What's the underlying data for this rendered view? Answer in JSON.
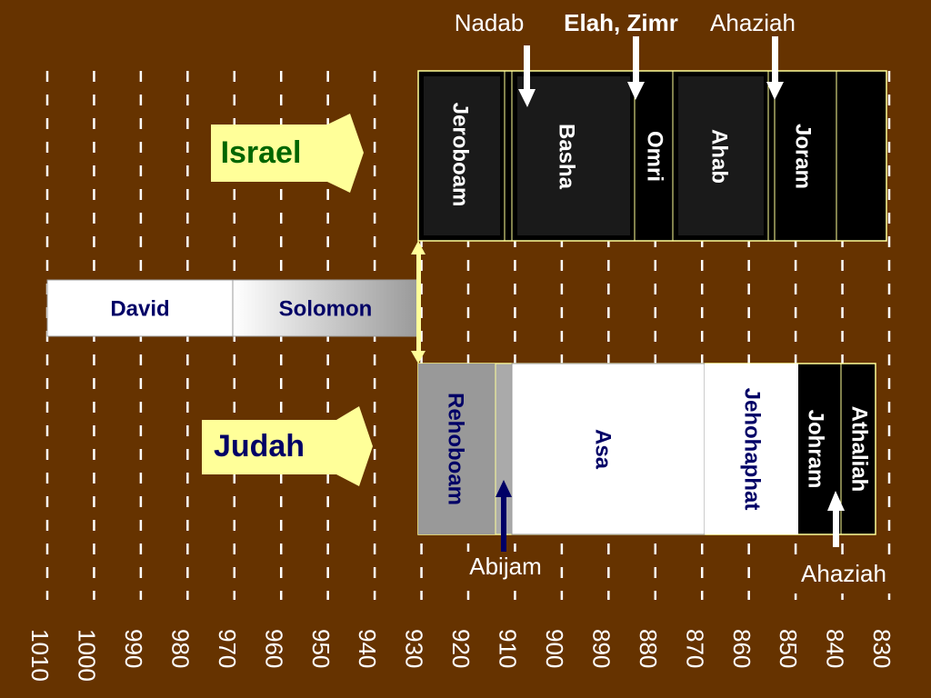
{
  "israel": {
    "label": "Israel",
    "kings": [
      "Jeroboam",
      "Basha",
      "Omri",
      "Ahab",
      "Joram"
    ]
  },
  "united": {
    "kings": [
      "David",
      "Solomon"
    ]
  },
  "judah": {
    "label": "Judah",
    "kings": [
      "Rehoboam",
      "Asa",
      "Jehohaphat",
      "Johram",
      "Athaliah"
    ]
  },
  "callouts": {
    "top": [
      "Nadab",
      "Elah, Zimr",
      "Ahaziah"
    ],
    "bottom": [
      "Abijam",
      "Ahaziah"
    ]
  },
  "years": [
    "1010",
    "1000",
    "990",
    "980",
    "970",
    "960",
    "950",
    "940",
    "930",
    "920",
    "910",
    "900",
    "890",
    "880",
    "870",
    "860",
    "850",
    "840",
    "830"
  ]
}
